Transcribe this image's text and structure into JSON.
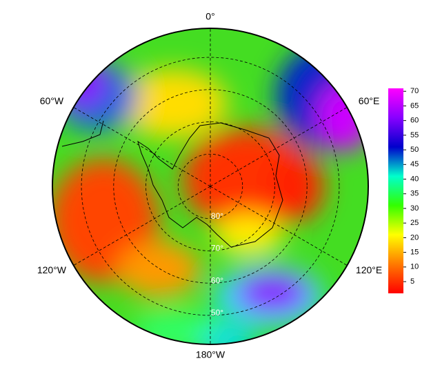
{
  "map": {
    "longitude_ticks": [
      {
        "value": 0,
        "label": "0°"
      },
      {
        "value": 60,
        "label": "60°E"
      },
      {
        "value": 120,
        "label": "120°E"
      },
      {
        "value": 180,
        "label": "180°W"
      },
      {
        "value": -120,
        "label": "120°W"
      },
      {
        "value": -60,
        "label": "60°W"
      }
    ],
    "latitude_lim": [
      -90,
      -41
    ],
    "latitude_ticks": [
      {
        "value": -80,
        "label": "80°"
      },
      {
        "value": -70,
        "label": "70°"
      },
      {
        "value": -60,
        "label": "60°"
      },
      {
        "value": -50,
        "label": "50°"
      }
    ]
  },
  "colorbar": {
    "lim": [
      1,
      71
    ],
    "ticks": [
      5,
      10,
      15,
      20,
      25,
      30,
      35,
      40,
      45,
      50,
      55,
      60,
      65,
      70
    ],
    "colors": [
      "#ff0000",
      "#ff7a00",
      "#ffff00",
      "#33ff00",
      "#00ffcc",
      "#0000cc",
      "#8800ff",
      "#ff00ff"
    ]
  }
}
